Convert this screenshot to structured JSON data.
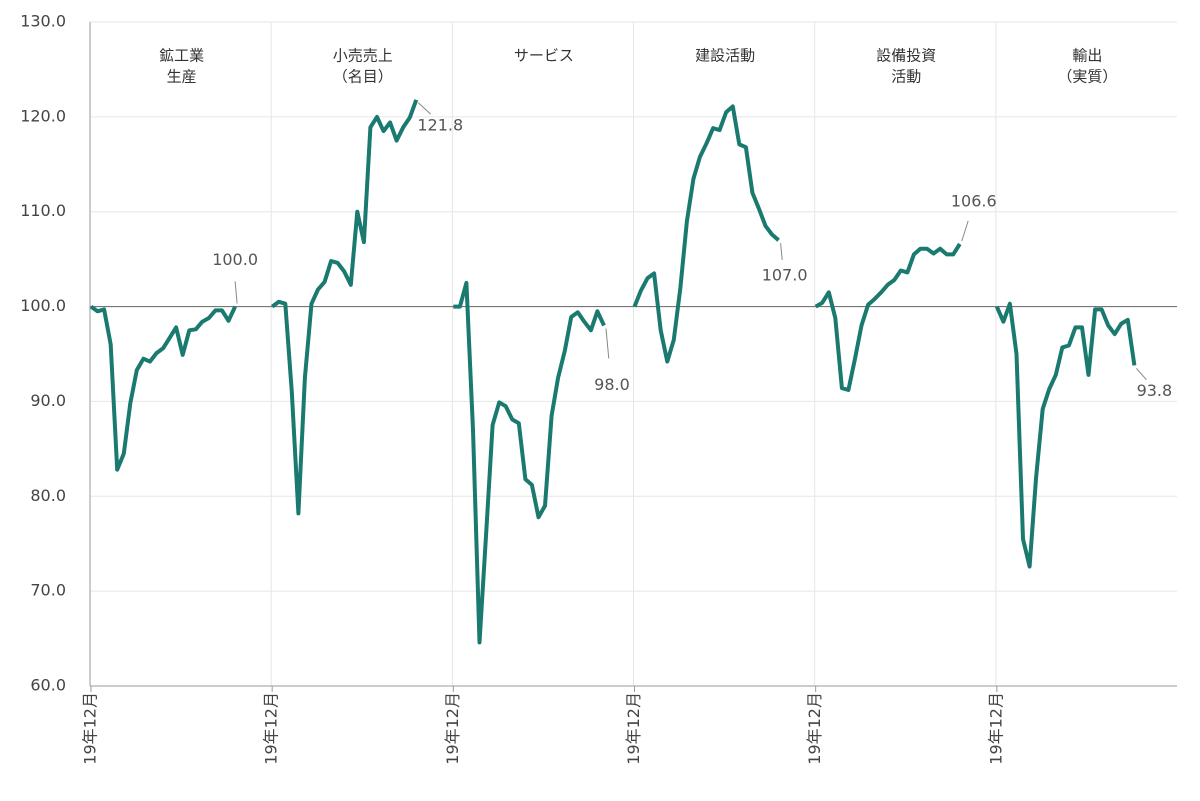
{
  "chart_data": {
    "type": "line",
    "color": "#1a7a70",
    "grid": true,
    "reference_line": 100,
    "ylim": [
      60,
      130
    ],
    "yticks": [
      {
        "value": 60,
        "label": "60.0"
      },
      {
        "value": 70,
        "label": "70.0"
      },
      {
        "value": 80,
        "label": "80.0"
      },
      {
        "value": 90,
        "label": "90.0"
      },
      {
        "value": 100,
        "label": "100.0"
      },
      {
        "value": 110,
        "label": "110.0"
      },
      {
        "value": 120,
        "label": "120.0"
      },
      {
        "value": 130,
        "label": "130.0"
      }
    ],
    "panels": [
      {
        "label": [
          "鉱工業",
          "生産"
        ],
        "xtick_label": "19年12月",
        "end_label": "100.0",
        "values": [
          100,
          99.5,
          99.7,
          96.0,
          82.8,
          84.5,
          89.8,
          93.3,
          94.5,
          94.2,
          95.1,
          95.6,
          96.7,
          97.8,
          94.9,
          97.5,
          97.6,
          98.4,
          98.8,
          99.6,
          99.6,
          98.5,
          100.0
        ]
      },
      {
        "label": [
          "小売売上",
          "（名目）"
        ],
        "xtick_label": "19年12月",
        "end_label": "121.8",
        "values": [
          100,
          100.5,
          100.3,
          91,
          78.2,
          92.5,
          100.3,
          101.8,
          102.6,
          104.8,
          104.6,
          103.7,
          102.3,
          110,
          106.8,
          118.9,
          120,
          118.5,
          119.4,
          117.5,
          118.9,
          119.9,
          121.8
        ]
      },
      {
        "label": [
          "サービス"
        ],
        "xtick_label": "19年12月",
        "end_label": "98.0",
        "values": [
          100,
          100,
          102.5,
          87,
          64.6,
          76,
          87.5,
          89.9,
          89.5,
          88.1,
          87.7,
          81.8,
          81.2,
          77.8,
          79,
          88.5,
          92.5,
          95.3,
          98.9,
          99.4,
          98.4,
          97.5,
          99.5,
          98.0
        ]
      },
      {
        "label": [
          "建設活動"
        ],
        "xtick_label": "19年12月",
        "end_label": "107.0",
        "values": [
          100,
          101.7,
          103,
          103.5,
          97.5,
          94.2,
          96.5,
          102,
          109,
          113.5,
          115.8,
          117.2,
          118.8,
          118.6,
          120.5,
          121.1,
          117.1,
          116.8,
          112,
          110.3,
          108.5,
          107.6,
          107.0
        ]
      },
      {
        "label": [
          "設備投資",
          "活動"
        ],
        "xtick_label": "19年12月",
        "end_label": "106.6",
        "values": [
          100,
          100.4,
          101.5,
          98.8,
          91.4,
          91.2,
          94.5,
          98,
          100.2,
          100.8,
          101.5,
          102.3,
          102.8,
          103.8,
          103.6,
          105.5,
          106.1,
          106.1,
          105.6,
          106.1,
          105.5,
          105.5,
          106.6
        ]
      },
      {
        "label": [
          "輸出",
          "（実質）"
        ],
        "xtick_label": "19年12月",
        "end_label": "93.8",
        "values": [
          100,
          98.4,
          100.3,
          95,
          75.5,
          72.6,
          82,
          89.2,
          91.3,
          92.8,
          95.7,
          95.9,
          97.8,
          97.8,
          92.8,
          99.7,
          99.7,
          98,
          97.1,
          98.2,
          98.6,
          93.8
        ]
      }
    ]
  }
}
